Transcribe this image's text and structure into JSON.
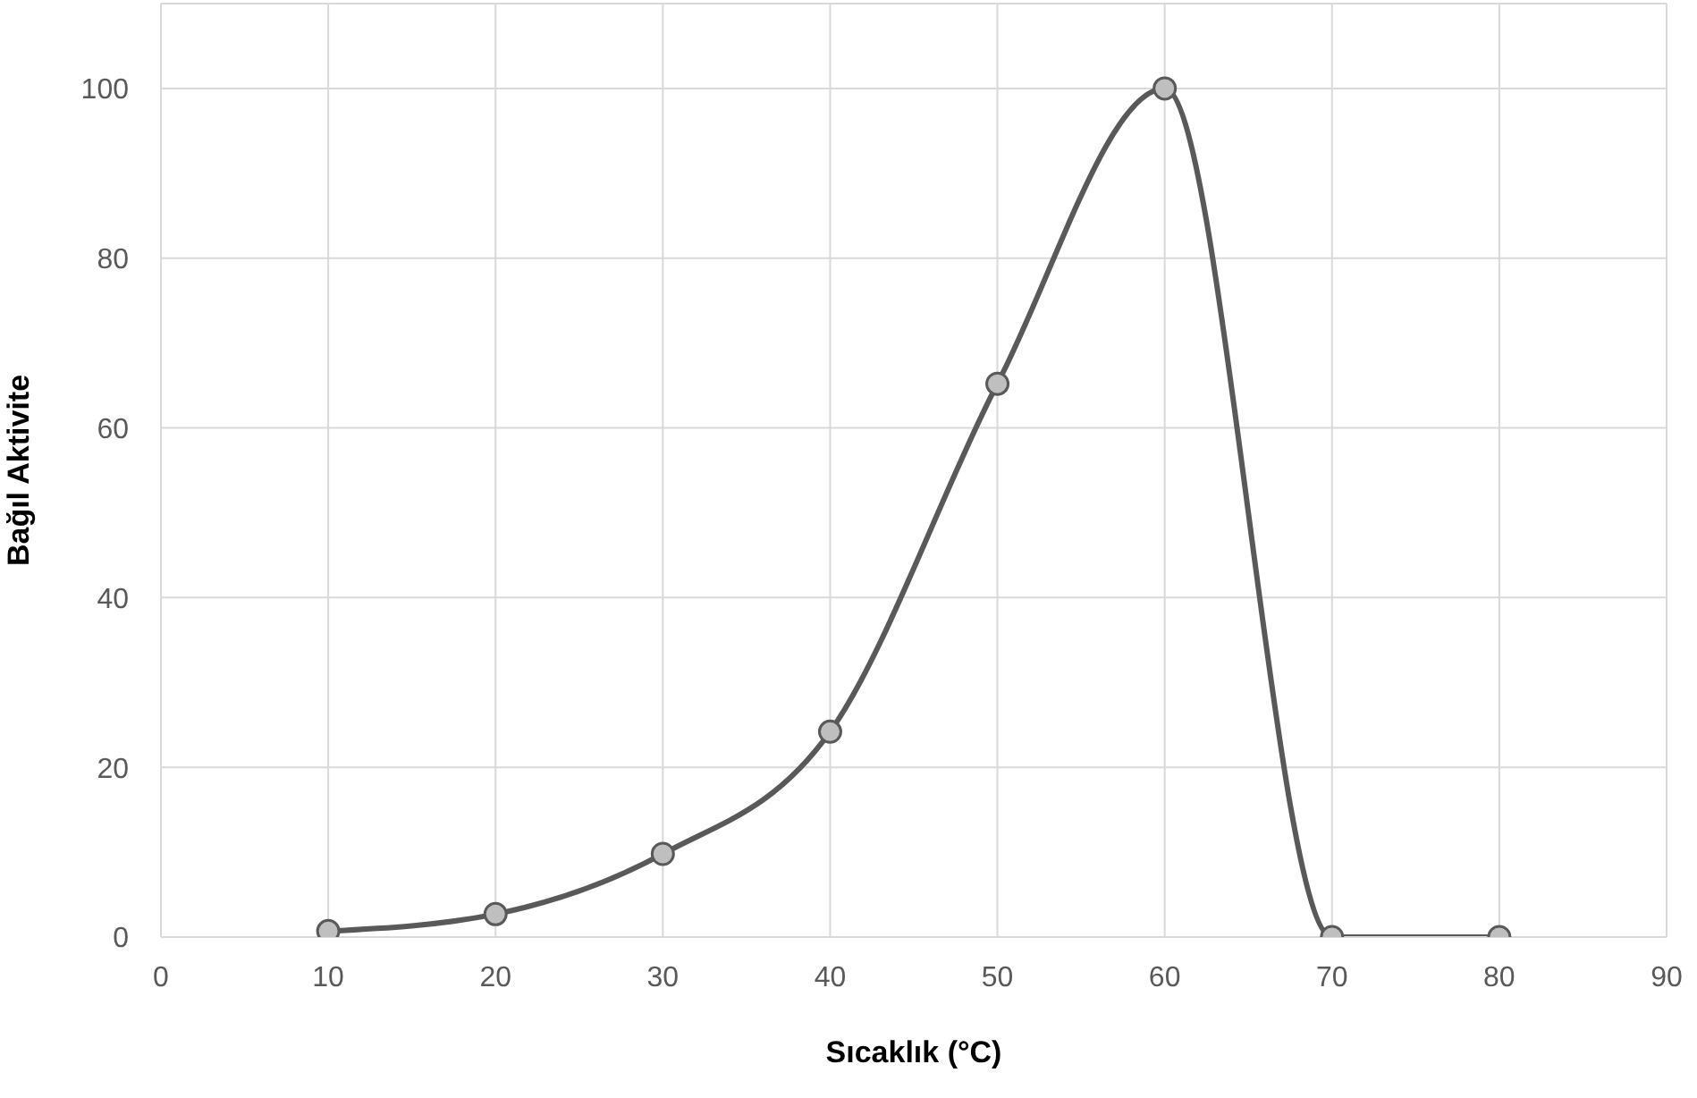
{
  "chart_data": {
    "type": "line",
    "xlabel": "Sıcaklık (°C)",
    "ylabel": "Bağıl Aktivite",
    "x": [
      10,
      20,
      30,
      40,
      50,
      60,
      70,
      80
    ],
    "series": [
      {
        "color": "#595959",
        "values": [
          0.7,
          2.7,
          9.8,
          24.2,
          65.2,
          100,
          0,
          0
        ]
      }
    ],
    "xlim": [
      0,
      90
    ],
    "xticks": [
      0,
      10,
      20,
      30,
      40,
      50,
      60,
      70,
      80,
      90
    ],
    "ylim": [
      0,
      110
    ],
    "yticks": [
      0,
      20,
      40,
      60,
      80,
      100
    ],
    "grid": true,
    "marker": "circle",
    "line_style": "solid"
  }
}
